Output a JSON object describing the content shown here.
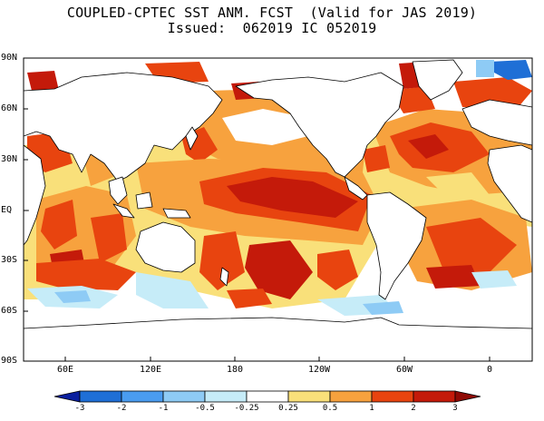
{
  "title": {
    "line1": "COUPLED-CPTEC SST ANM. FCST  (Valid for JAS 2019)",
    "line2": "Issued:  062019 IC 052019"
  },
  "latitude_labels": [
    "90N",
    "60N",
    "30N",
    "EQ",
    "30S",
    "60S",
    "90S"
  ],
  "longitude_labels": [
    "60E",
    "120E",
    "180",
    "120W",
    "60W",
    "0"
  ],
  "colorbar": {
    "labels": [
      "-3",
      "-2",
      "-1",
      "-0.5",
      "-0.25",
      "0.25",
      "0.5",
      "1",
      "2",
      "3"
    ],
    "colors": [
      "#0b1f9e",
      "#1f6fd6",
      "#4a9cf0",
      "#8ecbf5",
      "#c6ecf8",
      "#ffffff",
      "#f9e07a",
      "#f7a23e",
      "#e8440f",
      "#c41a0a",
      "#8f0a05"
    ]
  },
  "map_colors": {
    "land": "#ffffff",
    "coast": "#000000",
    "warm_light": "#f9e07a",
    "warm_mid": "#f7a23e",
    "warm_strong": "#e8440f",
    "warm_max": "#c41a0a",
    "cool_light": "#c6ecf8",
    "cool_mid": "#8ecbf5",
    "cool_strong": "#1f6fd6"
  }
}
